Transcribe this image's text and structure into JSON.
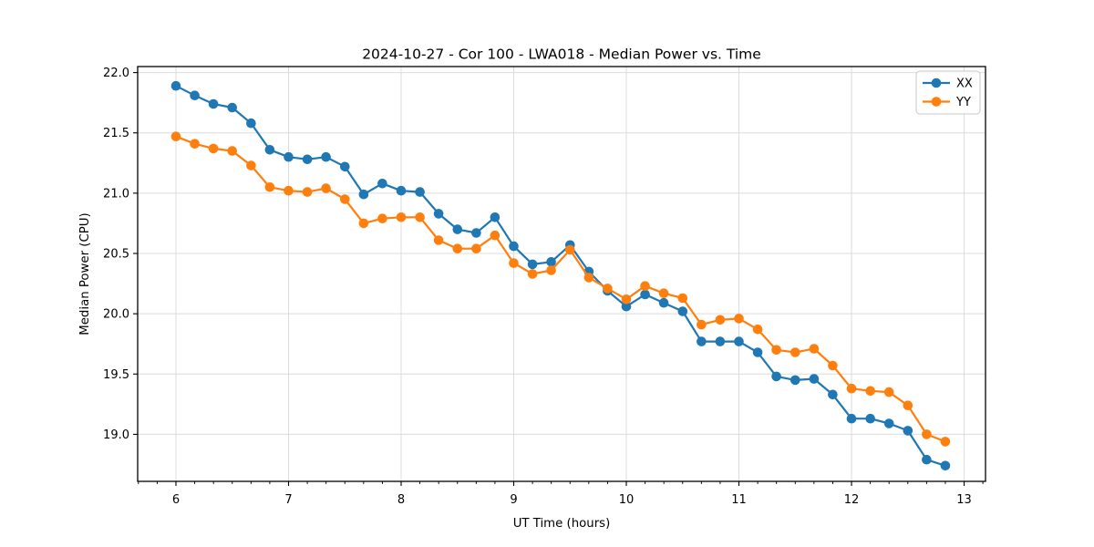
{
  "figure": {
    "background": "#ffffff",
    "grid_color": "#dcdcdc",
    "spine_color": "#000000"
  },
  "chart_data": {
    "type": "line",
    "title": "2024-10-27 - Cor 100 - LWA018 - Median Power vs. Time",
    "xlabel": "UT Time (hours)",
    "ylabel": "Median Power (CPU)",
    "xlim": [
      5.66,
      13.19
    ],
    "ylim": [
      18.61,
      22.05
    ],
    "xticks": [
      6,
      7,
      8,
      9,
      10,
      11,
      12,
      13
    ],
    "xtick_labels": [
      "6",
      "7",
      "8",
      "9",
      "10",
      "11",
      "12",
      "13"
    ],
    "yticks": [
      19.0,
      19.5,
      20.0,
      20.5,
      21.0,
      21.5,
      22.0
    ],
    "ytick_labels": [
      "19.0",
      "19.5",
      "20.0",
      "20.5",
      "21.0",
      "21.5",
      "22.0"
    ],
    "minor_xtick_interval": 0.1667,
    "grid": true,
    "legend": {
      "position": "upper right",
      "entries": [
        {
          "label": "XX",
          "color": "#1f77b4"
        },
        {
          "label": "YY",
          "color": "#ff7f0e"
        }
      ]
    },
    "x": [
      6.0,
      6.167,
      6.333,
      6.5,
      6.667,
      6.833,
      7.0,
      7.167,
      7.333,
      7.5,
      7.667,
      7.833,
      8.0,
      8.167,
      8.333,
      8.5,
      8.667,
      8.833,
      9.0,
      9.167,
      9.333,
      9.5,
      9.667,
      9.833,
      10.0,
      10.167,
      10.333,
      10.5,
      10.667,
      10.833,
      11.0,
      11.167,
      11.333,
      11.5,
      11.667,
      11.833,
      12.0,
      12.167,
      12.333,
      12.5,
      12.667,
      12.833
    ],
    "series": [
      {
        "name": "XX",
        "color": "#1f77b4",
        "marker": "circle",
        "values": [
          21.89,
          21.81,
          21.74,
          21.71,
          21.58,
          21.36,
          21.3,
          21.28,
          21.3,
          21.22,
          20.99,
          21.08,
          21.02,
          21.01,
          20.83,
          20.7,
          20.67,
          20.8,
          20.56,
          20.41,
          20.43,
          20.57,
          20.35,
          20.19,
          20.06,
          20.16,
          20.09,
          20.02,
          19.77,
          19.77,
          19.77,
          19.68,
          19.48,
          19.45,
          19.46,
          19.33,
          19.13,
          19.13,
          19.09,
          19.03,
          18.79,
          18.74
        ]
      },
      {
        "name": "YY",
        "color": "#ff7f0e",
        "marker": "circle",
        "values": [
          21.47,
          21.41,
          21.37,
          21.35,
          21.23,
          21.05,
          21.02,
          21.01,
          21.04,
          20.95,
          20.75,
          20.79,
          20.8,
          20.8,
          20.61,
          20.54,
          20.54,
          20.65,
          20.42,
          20.33,
          20.36,
          20.53,
          20.3,
          20.21,
          20.12,
          20.23,
          20.17,
          20.13,
          19.91,
          19.95,
          19.96,
          19.87,
          19.7,
          19.68,
          19.71,
          19.57,
          19.38,
          19.36,
          19.35,
          19.24,
          19.0,
          18.94
        ]
      }
    ]
  }
}
